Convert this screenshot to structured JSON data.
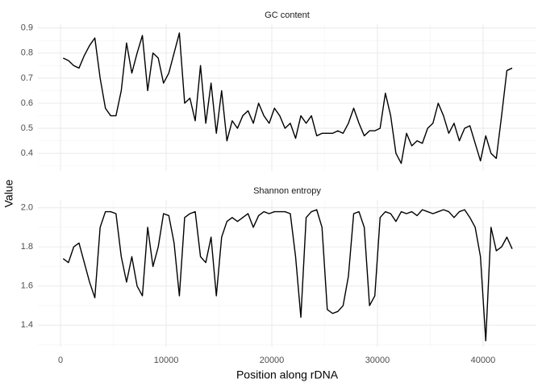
{
  "chart_data": [
    {
      "type": "line",
      "title": "GC content",
      "ylabel": "Value",
      "x": [
        250,
        750,
        1250,
        1750,
        2250,
        2750,
        3250,
        3750,
        4250,
        4750,
        5250,
        5750,
        6250,
        6750,
        7250,
        7750,
        8250,
        8750,
        9250,
        9750,
        10250,
        10750,
        11250,
        11750,
        12250,
        12750,
        13250,
        13750,
        14250,
        14750,
        15250,
        15750,
        16250,
        16750,
        17250,
        17750,
        18250,
        18750,
        19250,
        19750,
        20250,
        20750,
        21250,
        21750,
        22250,
        22750,
        23250,
        23750,
        24250,
        24750,
        25250,
        25750,
        26250,
        26750,
        27250,
        27750,
        28250,
        28750,
        29250,
        29750,
        30250,
        30750,
        31250,
        31750,
        32250,
        32750,
        33250,
        33750,
        34250,
        34750,
        35250,
        35750,
        36250,
        36750,
        37250,
        37750,
        38250,
        38750,
        39250,
        39750,
        40250,
        40750,
        41250,
        41750,
        42250,
        42750
      ],
      "series": [
        {
          "name": "GC content",
          "color": "#000000",
          "values": [
            0.78,
            0.77,
            0.75,
            0.74,
            0.79,
            0.83,
            0.86,
            0.7,
            0.58,
            0.55,
            0.55,
            0.65,
            0.84,
            0.72,
            0.8,
            0.87,
            0.65,
            0.8,
            0.78,
            0.68,
            0.72,
            0.8,
            0.88,
            0.6,
            0.62,
            0.53,
            0.75,
            0.52,
            0.68,
            0.48,
            0.65,
            0.45,
            0.53,
            0.5,
            0.55,
            0.57,
            0.52,
            0.6,
            0.55,
            0.52,
            0.58,
            0.55,
            0.5,
            0.52,
            0.46,
            0.55,
            0.52,
            0.55,
            0.47,
            0.48,
            0.48,
            0.48,
            0.49,
            0.48,
            0.52,
            0.58,
            0.52,
            0.47,
            0.49,
            0.49,
            0.5,
            0.64,
            0.55,
            0.4,
            0.36,
            0.48,
            0.43,
            0.45,
            0.44,
            0.5,
            0.52,
            0.6,
            0.55,
            0.48,
            0.52,
            0.45,
            0.5,
            0.51,
            0.44,
            0.37,
            0.47,
            0.4,
            0.38,
            0.55,
            0.73,
            0.74
          ]
        }
      ],
      "xlim": [
        -2140,
        45040
      ],
      "xticks": [
        0,
        10000,
        20000,
        30000,
        40000
      ],
      "minor_xticks": [
        5000,
        15000,
        25000,
        35000
      ],
      "ylim": [
        0.33,
        0.915
      ],
      "yticks": [
        0.4,
        0.5,
        0.6,
        0.7,
        0.8,
        0.9
      ],
      "minor_yticks": [
        0.35,
        0.45,
        0.55,
        0.65,
        0.75,
        0.85
      ],
      "grid": true
    },
    {
      "type": "line",
      "title": "Shannon entropy",
      "xlabel": "Position along rDNA",
      "x": [
        250,
        750,
        1250,
        1750,
        2250,
        2750,
        3250,
        3750,
        4250,
        4750,
        5250,
        5750,
        6250,
        6750,
        7250,
        7750,
        8250,
        8750,
        9250,
        9750,
        10250,
        10750,
        11250,
        11750,
        12250,
        12750,
        13250,
        13750,
        14250,
        14750,
        15250,
        15750,
        16250,
        16750,
        17250,
        17750,
        18250,
        18750,
        19250,
        19750,
        20250,
        20750,
        21250,
        21750,
        22250,
        22750,
        23250,
        23750,
        24250,
        24750,
        25250,
        25750,
        26250,
        26750,
        27250,
        27750,
        28250,
        28750,
        29250,
        29750,
        30250,
        30750,
        31250,
        31750,
        32250,
        32750,
        33250,
        33750,
        34250,
        34750,
        35250,
        35750,
        36250,
        36750,
        37250,
        37750,
        38250,
        38750,
        39250,
        39750,
        40250,
        40750,
        41250,
        41750,
        42250,
        42750
      ],
      "series": [
        {
          "name": "Shannon entropy",
          "color": "#000000",
          "values": [
            1.74,
            1.72,
            1.8,
            1.82,
            1.72,
            1.62,
            1.54,
            1.9,
            1.98,
            1.98,
            1.97,
            1.75,
            1.62,
            1.75,
            1.6,
            1.55,
            1.9,
            1.7,
            1.8,
            1.97,
            1.96,
            1.82,
            1.55,
            1.95,
            1.97,
            1.98,
            1.75,
            1.72,
            1.85,
            1.55,
            1.85,
            1.93,
            1.95,
            1.93,
            1.95,
            1.97,
            1.9,
            1.96,
            1.98,
            1.97,
            1.98,
            1.98,
            1.98,
            1.97,
            1.75,
            1.44,
            1.95,
            1.98,
            1.99,
            1.9,
            1.48,
            1.46,
            1.47,
            1.5,
            1.65,
            1.97,
            1.98,
            1.9,
            1.5,
            1.55,
            1.95,
            1.98,
            1.97,
            1.93,
            1.98,
            1.97,
            1.98,
            1.96,
            1.99,
            1.98,
            1.97,
            1.98,
            1.99,
            1.98,
            1.95,
            1.98,
            1.99,
            1.95,
            1.9,
            1.75,
            1.32,
            1.9,
            1.78,
            1.8,
            1.85,
            1.79
          ]
        }
      ],
      "xlim": [
        -2140,
        45040
      ],
      "xticks": [
        0,
        10000,
        20000,
        30000,
        40000
      ],
      "minor_xticks": [
        5000,
        15000,
        25000,
        35000
      ],
      "ylim": [
        1.29,
        2.04
      ],
      "yticks": [
        1.4,
        1.6,
        1.8,
        {
          "value": 2,
          "label": "2.0"
        }
      ],
      "minor_yticks": [
        1.3,
        1.5,
        1.7,
        1.9
      ],
      "grid": true
    }
  ]
}
